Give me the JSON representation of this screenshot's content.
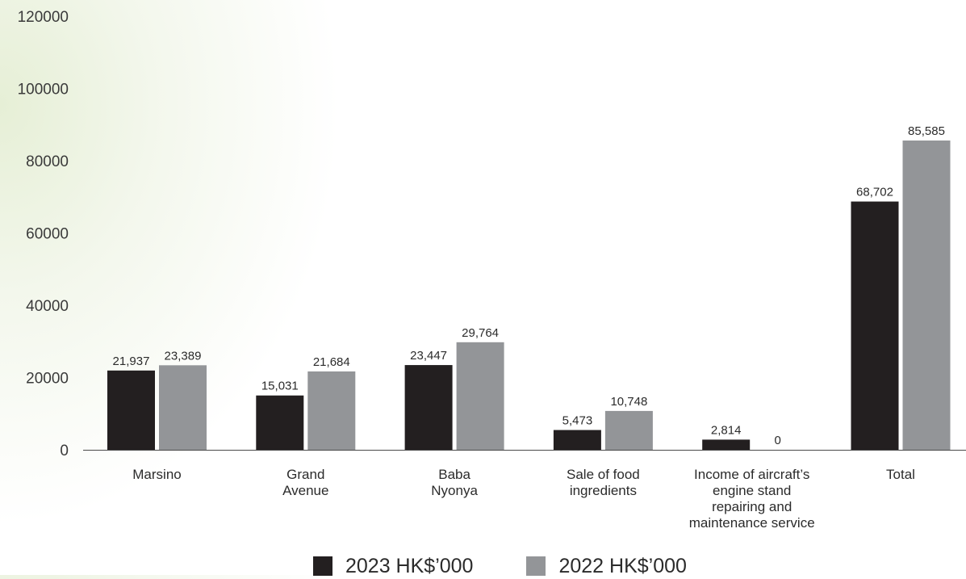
{
  "chart_data": {
    "type": "bar",
    "categories": [
      [
        "Marsino"
      ],
      [
        "Grand",
        "Avenue"
      ],
      [
        "Baba",
        "Nyonya"
      ],
      [
        "Sale of food",
        "ingredients"
      ],
      [
        "Income of aircraft’s",
        "engine stand",
        "repairing and",
        "maintenance service"
      ],
      [
        "Total"
      ]
    ],
    "series": [
      {
        "name": "2023 HK$’000",
        "color": "#231f20",
        "values": [
          21937,
          15031,
          23447,
          5473,
          2814,
          68702
        ],
        "labels": [
          "21,937",
          "15,031",
          "23,447",
          "5,473",
          "2,814",
          "68,702"
        ]
      },
      {
        "name": "2022 HK$’000",
        "color": "#939598",
        "values": [
          23389,
          21684,
          29764,
          10748,
          0,
          85585
        ],
        "labels": [
          "23,389",
          "21,684",
          "29,764",
          "10,748",
          "0",
          "85,585"
        ]
      }
    ],
    "yticks": [
      "0",
      "20000",
      "40000",
      "60000",
      "80000",
      "100000",
      "120000"
    ],
    "ylim": [
      0,
      120000
    ],
    "grid": false,
    "legend_position": "bottom-center"
  }
}
